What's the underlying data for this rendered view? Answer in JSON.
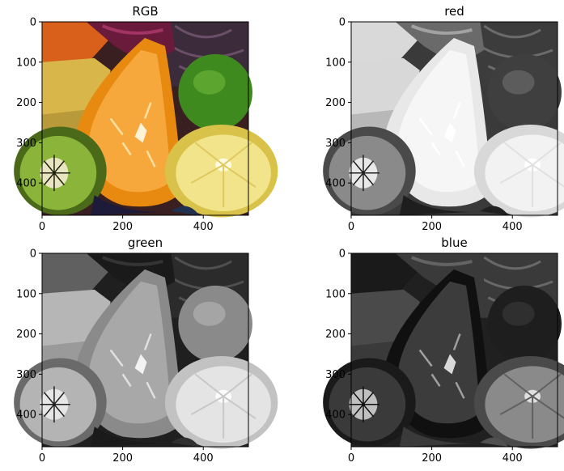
{
  "chart_data": [
    {
      "type": "image",
      "title": "RGB",
      "channel": "rgb",
      "xlim": [
        0,
        512
      ],
      "ylim": [
        0,
        480
      ],
      "xticks": [
        0,
        200,
        400
      ],
      "yticks": [
        0,
        100,
        200,
        300,
        400
      ],
      "xtick_labels": [
        "0",
        "200",
        "400"
      ],
      "ytick_labels": [
        "0",
        "100",
        "200",
        "300",
        "400"
      ]
    },
    {
      "type": "image",
      "title": "red",
      "channel": "red",
      "xlim": [
        0,
        512
      ],
      "ylim": [
        0,
        480
      ],
      "xticks": [
        0,
        200,
        400
      ],
      "yticks": [
        0,
        100,
        200,
        300,
        400
      ],
      "xtick_labels": [
        "0",
        "200",
        "400"
      ],
      "ytick_labels": [
        "0",
        "100",
        "200",
        "300",
        "400"
      ]
    },
    {
      "type": "image",
      "title": "green",
      "channel": "green",
      "xlim": [
        0,
        512
      ],
      "ylim": [
        0,
        480
      ],
      "xticks": [
        0,
        200,
        400
      ],
      "yticks": [
        0,
        100,
        200,
        300,
        400
      ],
      "xtick_labels": [
        "0",
        "200",
        "400"
      ],
      "ytick_labels": [
        "0",
        "100",
        "200",
        "300",
        "400"
      ]
    },
    {
      "type": "image",
      "title": "blue",
      "channel": "blue",
      "xlim": [
        0,
        512
      ],
      "ylim": [
        0,
        480
      ],
      "xticks": [
        0,
        200,
        400
      ],
      "yticks": [
        0,
        100,
        200,
        300,
        400
      ],
      "xtick_labels": [
        "0",
        "200",
        "400"
      ],
      "ytick_labels": [
        "0",
        "100",
        "200",
        "300",
        "400"
      ]
    }
  ]
}
